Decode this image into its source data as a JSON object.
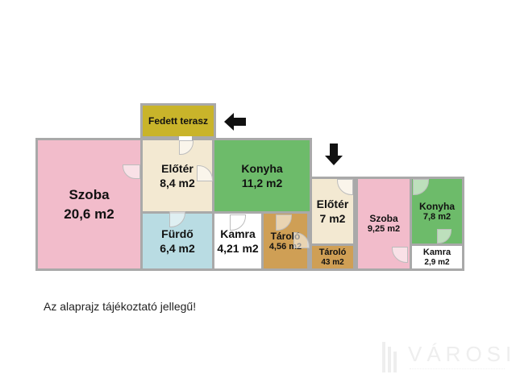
{
  "rooms": {
    "fedett_terasz": {
      "name": "Fedett terasz",
      "color": "#c9b42a"
    },
    "szoba_1": {
      "name": "Szoba",
      "area": "20,6 m2",
      "color": "#f2bccb"
    },
    "eloter_1": {
      "name": "Előtér",
      "area": "8,4 m2",
      "color": "#f3e9d2"
    },
    "konyha_1": {
      "name": "Konyha",
      "area": "11,2 m2",
      "color": "#6dbb6a"
    },
    "furdo": {
      "name": "Fürdő",
      "area": "6,4 m2",
      "color": "#b9dce3"
    },
    "kamra_1": {
      "name": "Kamra",
      "area": "4,21 m2",
      "color": "#ffffff"
    },
    "tarolo_1": {
      "name": "Tároló",
      "area": "4,56 m2",
      "color": "#cf9f55"
    },
    "eloter_2": {
      "name": "Előtér",
      "area": "7 m2",
      "color": "#f3e9d2"
    },
    "tarolo_2": {
      "name": "Tároló",
      "area": "43 m2",
      "color": "#cf9f55"
    },
    "szoba_2": {
      "name": "Szoba",
      "area": "9,25 m2",
      "color": "#f2bccb"
    },
    "konyha_2": {
      "name": "Konyha",
      "area": "7,8 m2",
      "color": "#6dbb6a"
    },
    "kamra_2": {
      "name": "Kamra",
      "area": "2,9 m2",
      "color": "#ffffff"
    }
  },
  "entrance_arrows": [
    {
      "direction": "left",
      "icon": "arrow-left-icon"
    },
    {
      "direction": "down",
      "icon": "arrow-down-icon"
    }
  ],
  "note": "Az alaprajz tájékoztató jellegű!",
  "logo": {
    "text": "VÁROSI"
  },
  "colors": {
    "wall": "#a9a9a9",
    "arrow": "#111111"
  }
}
